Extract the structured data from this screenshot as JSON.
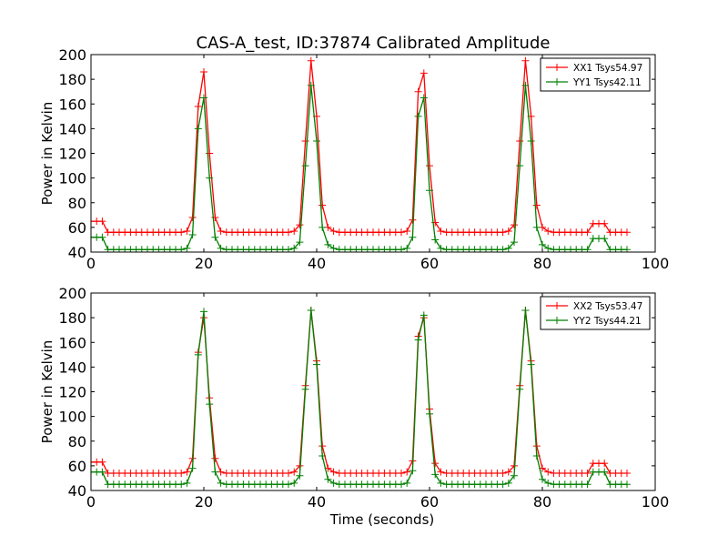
{
  "title": "CAS-A_test, ID:37874 Calibrated Amplitude",
  "colors": {
    "red": "#ff0000",
    "green": "#008000",
    "axis": "#000000",
    "background": "#ffffff"
  },
  "chart_data": [
    {
      "type": "line",
      "title": "CAS-A_test, ID:37874 Calibrated Amplitude",
      "xlabel": "",
      "ylabel": "Power in Kelvin",
      "xlim": [
        0,
        100
      ],
      "ylim": [
        40,
        200
      ],
      "xticks": [
        "0",
        "20",
        "40",
        "60",
        "80",
        "100"
      ],
      "yticks": [
        "40",
        "60",
        "80",
        "100",
        "120",
        "140",
        "160",
        "180",
        "200"
      ],
      "grid": false,
      "legend_position": "top-right",
      "marker": "plus",
      "x": [
        0,
        1,
        2,
        3,
        4,
        5,
        6,
        7,
        8,
        9,
        10,
        11,
        12,
        13,
        14,
        15,
        16,
        17,
        18,
        19,
        20,
        21,
        22,
        23,
        24,
        25,
        26,
        27,
        28,
        29,
        30,
        31,
        32,
        33,
        34,
        35,
        36,
        37,
        38,
        39,
        40,
        41,
        42,
        43,
        44,
        45,
        46,
        47,
        48,
        49,
        50,
        51,
        52,
        53,
        54,
        55,
        56,
        57,
        58,
        59,
        60,
        61,
        62,
        63,
        64,
        65,
        66,
        67,
        68,
        69,
        70,
        71,
        72,
        73,
        74,
        75,
        76,
        77,
        78,
        79,
        80,
        81,
        82,
        83,
        84,
        85,
        86,
        87,
        88,
        89,
        90,
        91,
        92,
        93,
        94,
        95
      ],
      "series": [
        {
          "name": "XX1 Tsys54.97",
          "color": "#ff0000",
          "values": [
            65,
            65,
            65,
            56,
            56,
            56,
            56,
            56,
            56,
            56,
            56,
            56,
            56,
            56,
            56,
            56,
            56,
            57,
            68,
            158,
            186,
            120,
            68,
            57,
            56,
            56,
            56,
            56,
            56,
            56,
            56,
            56,
            56,
            56,
            56,
            56,
            57,
            62,
            130,
            195,
            150,
            78,
            60,
            57,
            56,
            56,
            56,
            56,
            56,
            56,
            56,
            56,
            56,
            56,
            56,
            56,
            57,
            66,
            170,
            185,
            110,
            64,
            57,
            56,
            56,
            56,
            56,
            56,
            56,
            56,
            56,
            56,
            56,
            56,
            57,
            62,
            130,
            195,
            150,
            78,
            60,
            57,
            56,
            56,
            56,
            56,
            56,
            56,
            56,
            63,
            63,
            63,
            56,
            56,
            56,
            56
          ]
        },
        {
          "name": "YY1 Tsys42.11",
          "color": "#008000",
          "values": [
            52,
            52,
            52,
            42,
            42,
            42,
            42,
            42,
            42,
            42,
            42,
            42,
            42,
            42,
            42,
            42,
            42,
            43,
            54,
            140,
            165,
            100,
            52,
            43,
            42,
            42,
            42,
            42,
            42,
            42,
            42,
            42,
            42,
            42,
            42,
            42,
            43,
            48,
            110,
            175,
            130,
            60,
            46,
            43,
            42,
            42,
            42,
            42,
            42,
            42,
            42,
            42,
            42,
            42,
            42,
            42,
            43,
            52,
            150,
            165,
            90,
            50,
            43,
            42,
            42,
            42,
            42,
            42,
            42,
            42,
            42,
            42,
            42,
            42,
            43,
            48,
            110,
            175,
            130,
            60,
            46,
            43,
            42,
            42,
            42,
            42,
            42,
            42,
            42,
            51,
            51,
            51,
            42,
            42,
            42,
            42
          ]
        }
      ]
    },
    {
      "type": "line",
      "title": "",
      "xlabel": "Time (seconds)",
      "ylabel": "Power in Kelvin",
      "xlim": [
        0,
        100
      ],
      "ylim": [
        40,
        200
      ],
      "xticks": [
        "0",
        "20",
        "40",
        "60",
        "80",
        "100"
      ],
      "yticks": [
        "40",
        "60",
        "80",
        "100",
        "120",
        "140",
        "160",
        "180",
        "200"
      ],
      "grid": false,
      "legend_position": "top-right",
      "marker": "plus",
      "x": [
        0,
        1,
        2,
        3,
        4,
        5,
        6,
        7,
        8,
        9,
        10,
        11,
        12,
        13,
        14,
        15,
        16,
        17,
        18,
        19,
        20,
        21,
        22,
        23,
        24,
        25,
        26,
        27,
        28,
        29,
        30,
        31,
        32,
        33,
        34,
        35,
        36,
        37,
        38,
        39,
        40,
        41,
        42,
        43,
        44,
        45,
        46,
        47,
        48,
        49,
        50,
        51,
        52,
        53,
        54,
        55,
        56,
        57,
        58,
        59,
        60,
        61,
        62,
        63,
        64,
        65,
        66,
        67,
        68,
        69,
        70,
        71,
        72,
        73,
        74,
        75,
        76,
        77,
        78,
        79,
        80,
        81,
        82,
        83,
        84,
        85,
        86,
        87,
        88,
        89,
        90,
        91,
        92,
        93,
        94,
        95
      ],
      "series": [
        {
          "name": "XX2 Tsys53.47",
          "color": "#ff0000",
          "values": [
            63,
            63,
            63,
            54,
            54,
            54,
            54,
            54,
            54,
            54,
            54,
            54,
            54,
            54,
            54,
            54,
            54,
            55,
            66,
            152,
            180,
            115,
            66,
            55,
            54,
            54,
            54,
            54,
            54,
            54,
            54,
            54,
            54,
            54,
            54,
            54,
            55,
            60,
            125,
            186,
            145,
            76,
            58,
            55,
            54,
            54,
            54,
            54,
            54,
            54,
            54,
            54,
            54,
            54,
            54,
            54,
            55,
            64,
            165,
            180,
            106,
            62,
            55,
            54,
            54,
            54,
            54,
            54,
            54,
            54,
            54,
            54,
            54,
            54,
            55,
            60,
            125,
            186,
            145,
            76,
            58,
            55,
            54,
            54,
            54,
            54,
            54,
            54,
            54,
            62,
            62,
            62,
            54,
            54,
            54,
            54
          ]
        },
        {
          "name": "YY2 Tsys44.21",
          "color": "#008000",
          "values": [
            55,
            55,
            55,
            45,
            45,
            45,
            45,
            45,
            45,
            45,
            45,
            45,
            45,
            45,
            45,
            45,
            45,
            46,
            58,
            150,
            185,
            110,
            55,
            46,
            45,
            45,
            45,
            45,
            45,
            45,
            45,
            45,
            45,
            45,
            45,
            45,
            46,
            52,
            122,
            186,
            142,
            68,
            49,
            46,
            45,
            45,
            45,
            45,
            45,
            45,
            45,
            45,
            45,
            45,
            45,
            45,
            46,
            56,
            162,
            182,
            102,
            53,
            46,
            45,
            45,
            45,
            45,
            45,
            45,
            45,
            45,
            45,
            45,
            45,
            46,
            52,
            122,
            186,
            142,
            68,
            49,
            46,
            45,
            45,
            45,
            45,
            45,
            45,
            45,
            55,
            55,
            55,
            45,
            45,
            45,
            45
          ]
        }
      ]
    }
  ]
}
